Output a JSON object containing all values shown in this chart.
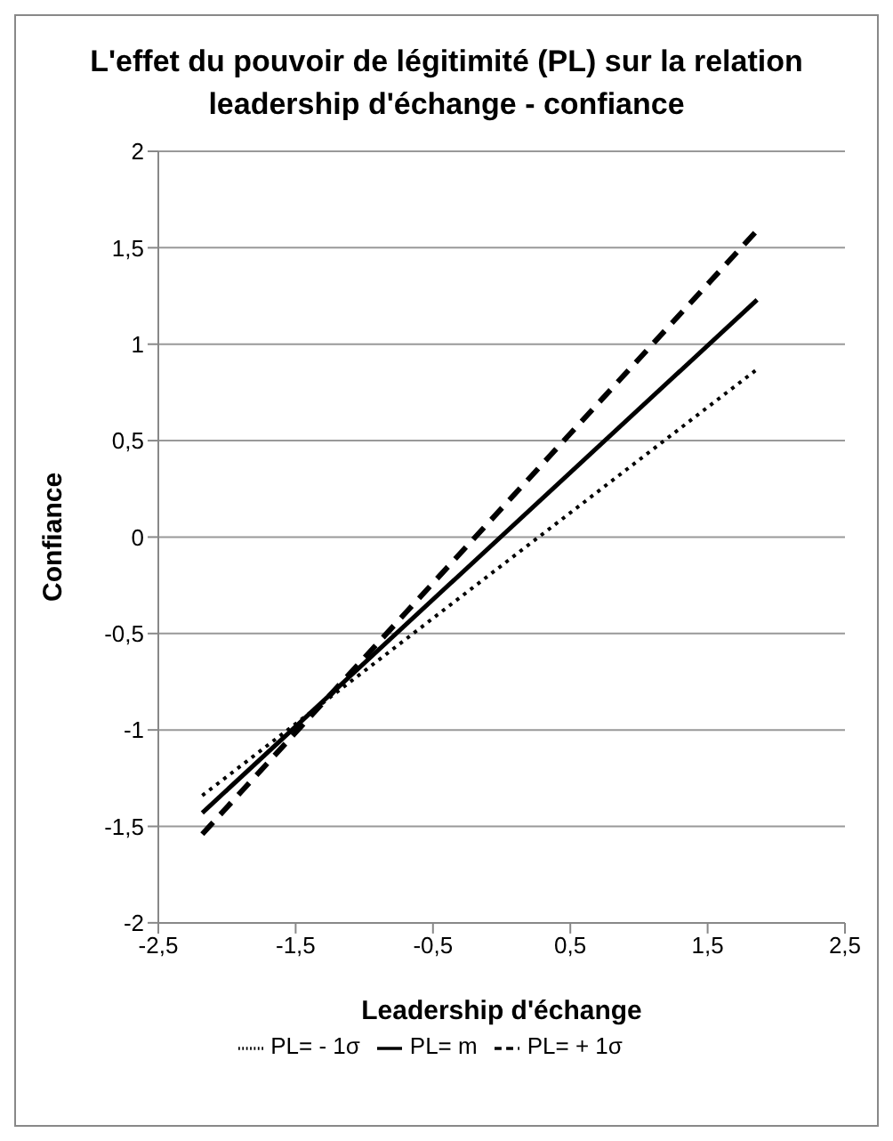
{
  "chart_data": {
    "type": "line",
    "title": "L'effet du pouvoir de légitimité (PL) sur la relation leadership d'échange - confiance",
    "xlabel": "Leadership d'échange",
    "ylabel": "Confiance",
    "x": [
      -2.18,
      1.86
    ],
    "series": [
      {
        "name": "PL= - 1σ",
        "color": "#000000",
        "values": [
          -1.34,
          0.87
        ],
        "line_style": "dotted"
      },
      {
        "name": "PL= m",
        "color": "#000000",
        "values": [
          -1.43,
          1.23
        ],
        "line_style": "solid"
      },
      {
        "name": "PL= + 1σ",
        "color": "#000000",
        "values": [
          -1.54,
          1.59
        ],
        "line_style": "dashed"
      }
    ],
    "xlim": [
      -2.5,
      2.5
    ],
    "xticks": [
      {
        "value": -2.5,
        "label": "-2,5"
      },
      {
        "value": -1.5,
        "label": "-1,5"
      },
      {
        "value": -0.5,
        "label": "-0,5"
      },
      {
        "value": 0.5,
        "label": "0,5"
      },
      {
        "value": 1.5,
        "label": "1,5"
      },
      {
        "value": 2.5,
        "label": "2,5"
      }
    ],
    "ylim": [
      -2,
      2
    ],
    "yticks": [
      {
        "value": -2,
        "label": "-2"
      },
      {
        "value": -1.5,
        "label": "-1,5"
      },
      {
        "value": -1,
        "label": "-1"
      },
      {
        "value": -0.5,
        "label": "-0,5"
      },
      {
        "value": 0,
        "label": "0"
      },
      {
        "value": 0.5,
        "label": "0,5"
      },
      {
        "value": 1,
        "label": "1"
      },
      {
        "value": 1.5,
        "label": "1,5"
      },
      {
        "value": 2,
        "label": "2"
      }
    ],
    "grid": "y",
    "legend": "bottom",
    "marker": "none"
  }
}
